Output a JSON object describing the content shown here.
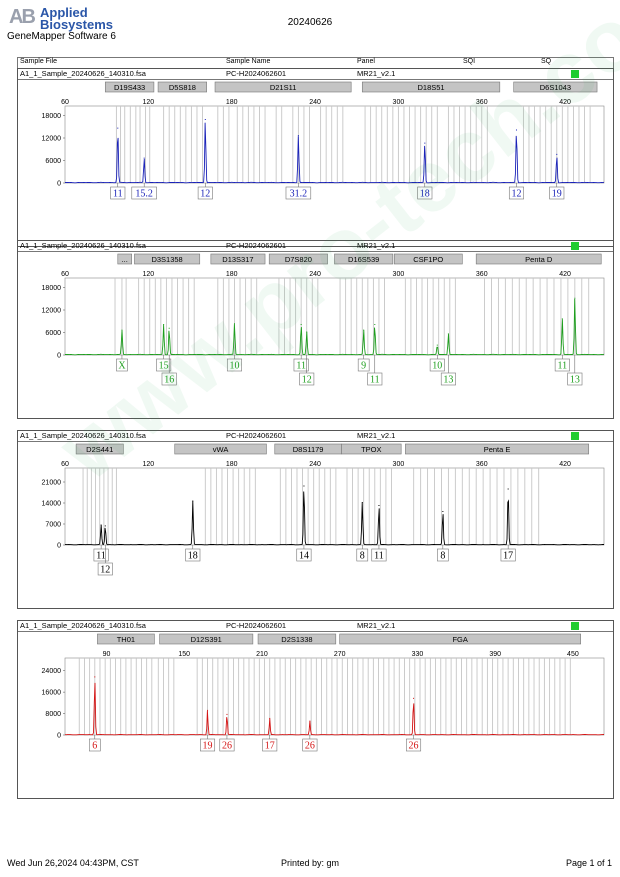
{
  "header": {
    "brand_line1": "Applied",
    "brand_line2": "Biosystems",
    "logo_mark": "AB",
    "software": "GeneMapper Software 6",
    "run_date": "20240626"
  },
  "columns": {
    "sample_file": "Sample File",
    "sample_name": "Sample Name",
    "panel": "Panel",
    "sqi": "SQI",
    "sq": "SQ"
  },
  "watermark": "www.pro-tech.com.cn",
  "footer": {
    "datetime": "Wed Jun 26,2024 04:43PM, CST",
    "printed_by": "Printed by: gm",
    "page": "Page 1 of 1"
  },
  "colors": {
    "blue": "#1a22b8",
    "green": "#1e9e1e",
    "black": "#000000",
    "red": "#d41414",
    "sq_ok": "#1fcc30"
  },
  "chart_data": [
    {
      "type": "line",
      "dye": "blue",
      "sample_file": "A1_1_Sample_20240626_140310.fsa",
      "sample_name": "PC-H2024062601",
      "panel": "MR21_v2.1",
      "x_ticks": [
        60,
        120,
        180,
        240,
        300,
        360,
        420
      ],
      "xlim": [
        60,
        448
      ],
      "y_ticks": [
        0,
        6000,
        12000,
        18000
      ],
      "ylim": [
        0,
        20000
      ],
      "markers": [
        {
          "name": "D19S433",
          "from": 89,
          "to": 124
        },
        {
          "name": "D5S818",
          "from": 127,
          "to": 162
        },
        {
          "name": "D21S11",
          "from": 168,
          "to": 266
        },
        {
          "name": "D18S51",
          "from": 274,
          "to": 373
        },
        {
          "name": "D6S1043",
          "from": 383,
          "to": 443
        }
      ],
      "bins": [
        97,
        100,
        103,
        107,
        111,
        114,
        118,
        121,
        131,
        135,
        139,
        143,
        147,
        151,
        155,
        159,
        170,
        174,
        178,
        184,
        188,
        192,
        196,
        200,
        204,
        212,
        216,
        224,
        228,
        232,
        236,
        244,
        248,
        252,
        256,
        260,
        276,
        280,
        284,
        288,
        292,
        296,
        300,
        304,
        308,
        312,
        316,
        320,
        324,
        328,
        336,
        340,
        344,
        348,
        352,
        356,
        360,
        364,
        390,
        394,
        398,
        402,
        406,
        410,
        414,
        418,
        422,
        426,
        430,
        434,
        438
      ],
      "peaks": [
        {
          "x": 98,
          "height": 14500,
          "label": "11"
        },
        {
          "x": 117,
          "height": 6500,
          "label": "15.2"
        },
        {
          "x": 161,
          "height": 16800,
          "label": "12"
        },
        {
          "x": 228,
          "height": 12500,
          "label": "31.2"
        },
        {
          "x": 319,
          "height": 10500,
          "label": "18"
        },
        {
          "x": 385,
          "height": 14000,
          "label": "12"
        },
        {
          "x": 414,
          "height": 7500,
          "label": "19"
        }
      ]
    },
    {
      "type": "line",
      "dye": "green",
      "sample_file": "A1_1_Sample_20240626_140310.fsa",
      "sample_name": "PC-H2024062601",
      "panel": "MR21_v2.1",
      "x_ticks": [
        60,
        120,
        180,
        240,
        300,
        360,
        420
      ],
      "xlim": [
        60,
        448
      ],
      "y_ticks": [
        0,
        6000,
        12000,
        18000
      ],
      "ylim": [
        0,
        20000
      ],
      "markers": [
        {
          "name": "...",
          "from": 98,
          "to": 108
        },
        {
          "name": "D3S1358",
          "from": 110,
          "to": 157
        },
        {
          "name": "D13S317",
          "from": 165,
          "to": 204
        },
        {
          "name": "D7S820",
          "from": 207,
          "to": 249
        },
        {
          "name": "D16S539",
          "from": 254,
          "to": 296
        },
        {
          "name": "CSF1PO",
          "from": 297,
          "to": 346
        },
        {
          "name": "Penta D",
          "from": 356,
          "to": 446
        }
      ],
      "bins": [
        96,
        101,
        104,
        113,
        117,
        121,
        125,
        129,
        133,
        137,
        141,
        145,
        149,
        153,
        170,
        174,
        178,
        182,
        186,
        190,
        194,
        198,
        214,
        218,
        222,
        226,
        230,
        234,
        238,
        242,
        258,
        262,
        266,
        270,
        274,
        278,
        282,
        286,
        290,
        305,
        309,
        313,
        317,
        321,
        325,
        329,
        333,
        337,
        341,
        362,
        367,
        372,
        377,
        382,
        387,
        392,
        397,
        402,
        407,
        412,
        417,
        422,
        427,
        432,
        437
      ],
      "peaks": [
        {
          "x": 101,
          "height": 6500,
          "label": "X"
        },
        {
          "x": 131,
          "height": 8000,
          "label": "15"
        },
        {
          "x": 135,
          "height": 7000,
          "label": "16"
        },
        {
          "x": 182,
          "height": 8200,
          "label": "10"
        },
        {
          "x": 230,
          "height": 8000,
          "label": "11"
        },
        {
          "x": 234,
          "height": 6000,
          "label": "12"
        },
        {
          "x": 275,
          "height": 6500,
          "label": "9"
        },
        {
          "x": 283,
          "height": 8000,
          "label": "11"
        },
        {
          "x": 328,
          "height": 2500,
          "label": "10"
        },
        {
          "x": 336,
          "height": 5500,
          "label": "13"
        },
        {
          "x": 418,
          "height": 9500,
          "label": "11"
        },
        {
          "x": 427,
          "height": 15000,
          "label": "13"
        }
      ]
    },
    {
      "type": "line",
      "dye": "black",
      "sample_file": "A1_1_Sample_20240626_140310.fsa",
      "sample_name": "PC-H2024062601",
      "panel": "MR21_v2.1",
      "x_ticks": [
        60,
        120,
        180,
        240,
        300,
        360,
        420
      ],
      "xlim": [
        60,
        448
      ],
      "y_ticks": [
        0,
        7000,
        14000,
        21000
      ],
      "ylim": [
        0,
        25000
      ],
      "markers": [
        {
          "name": "D2S441",
          "from": 68,
          "to": 102
        },
        {
          "name": "vWA",
          "from": 139,
          "to": 205
        },
        {
          "name": "D8S1179",
          "from": 211,
          "to": 259
        },
        {
          "name": "TPOX",
          "from": 259,
          "to": 302
        },
        {
          "name": "Penta E",
          "from": 305,
          "to": 437
        }
      ],
      "bins": [
        73,
        76,
        79,
        82,
        85,
        88,
        91,
        94,
        97,
        161,
        165,
        169,
        173,
        177,
        181,
        185,
        189,
        193,
        197,
        215,
        219,
        223,
        227,
        231,
        235,
        239,
        243,
        247,
        251,
        255,
        263,
        267,
        271,
        275,
        279,
        283,
        287,
        291,
        295,
        311,
        316,
        321,
        326,
        331,
        336,
        341,
        346,
        351,
        356,
        361,
        366,
        371,
        376,
        381,
        386,
        391,
        396,
        401
      ],
      "peaks": [
        {
          "x": 86,
          "height": 6500,
          "label": "11"
        },
        {
          "x": 89,
          "height": 6200,
          "label": "12"
        },
        {
          "x": 152,
          "height": 14500,
          "label": "18"
        },
        {
          "x": 232,
          "height": 19500,
          "label": "14"
        },
        {
          "x": 274,
          "height": 14000,
          "label": "8"
        },
        {
          "x": 286,
          "height": 13000,
          "label": "11"
        },
        {
          "x": 332,
          "height": 11000,
          "label": "8"
        },
        {
          "x": 379,
          "height": 18500,
          "label": "17"
        }
      ]
    },
    {
      "type": "line",
      "dye": "red",
      "sample_file": "A1_1_Sample_20240626_140310.fsa",
      "sample_name": "PC-H2024062601",
      "panel": "MR21_v2.1",
      "x_ticks": [
        90,
        150,
        210,
        270,
        330,
        390,
        450
      ],
      "xlim": [
        58,
        474
      ],
      "y_ticks": [
        0,
        8000,
        16000,
        24000
      ],
      "ylim": [
        0,
        28000
      ],
      "markers": [
        {
          "name": "TH01",
          "from": 83,
          "to": 127
        },
        {
          "name": "D12S391",
          "from": 131,
          "to": 203
        },
        {
          "name": "D2S1338",
          "from": 207,
          "to": 267
        },
        {
          "name": "FGA",
          "from": 270,
          "to": 456
        }
      ],
      "bins": [
        69,
        73,
        77,
        81,
        85,
        89,
        93,
        97,
        101,
        105,
        109,
        113,
        117,
        121,
        125,
        130,
        134,
        138,
        142,
        160,
        164,
        168,
        172,
        176,
        180,
        184,
        188,
        192,
        196,
        200,
        204,
        208,
        212,
        216,
        220,
        224,
        228,
        232,
        236,
        240,
        244,
        248,
        252,
        256,
        260,
        264,
        268,
        272,
        276,
        280,
        284,
        288,
        292,
        296,
        300,
        304,
        308,
        312,
        316,
        320,
        324,
        328,
        332,
        336,
        340,
        344,
        348,
        352,
        356,
        360,
        364,
        368,
        372,
        376,
        380,
        384,
        388,
        392,
        396,
        400,
        404,
        408,
        412,
        416,
        420,
        424,
        428,
        432,
        436,
        440,
        444,
        448
      ],
      "peaks": [
        {
          "x": 81,
          "height": 21500,
          "label": "6"
        },
        {
          "x": 168,
          "height": 9000,
          "label": "19"
        },
        {
          "x": 183,
          "height": 7500,
          "label": "26"
        },
        {
          "x": 216,
          "height": 6000,
          "label": "17"
        },
        {
          "x": 247,
          "height": 5000,
          "label": "26"
        },
        {
          "x": 327,
          "height": 13500,
          "label": "26"
        }
      ]
    }
  ]
}
